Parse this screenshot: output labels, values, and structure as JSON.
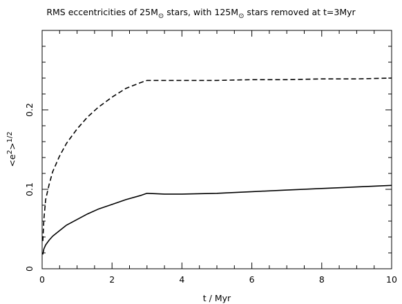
{
  "chart_data": {
    "type": "line",
    "title": {
      "part1": "RMS eccentricities of 25M",
      "sub1": "⊙",
      "part2": " stars, with 125M",
      "sub2": "⊙",
      "part3": " stars removed at t=3Myr"
    },
    "xlabel": "t  /  Myr",
    "ylabel": {
      "open": "<e",
      "sup1": "2",
      "close": ">",
      "sup2": "1/2"
    },
    "xlim": [
      0,
      10
    ],
    "ylim": [
      0,
      0.3
    ],
    "xticks_major": [
      0,
      2,
      4,
      6,
      8,
      10
    ],
    "xtick_labels": [
      "0",
      "2",
      "4",
      "6",
      "8",
      "10"
    ],
    "yticks_major": [
      0,
      0.1,
      0.2
    ],
    "ytick_labels": [
      "0",
      "0.1",
      "0.2"
    ],
    "grid": false,
    "legend": "none",
    "series": [
      {
        "style": "dashed",
        "x": [
          0.02,
          0.05,
          0.1,
          0.2,
          0.3,
          0.5,
          0.7,
          1.0,
          1.3,
          1.6,
          2.0,
          2.4,
          2.8,
          3.0,
          4.0,
          5.0,
          6.0,
          7.0,
          8.0,
          9.0,
          10.0
        ],
        "y": [
          0.035,
          0.062,
          0.087,
          0.106,
          0.122,
          0.142,
          0.158,
          0.176,
          0.191,
          0.203,
          0.216,
          0.227,
          0.234,
          0.237,
          0.237,
          0.237,
          0.238,
          0.238,
          0.239,
          0.239,
          0.24
        ]
      },
      {
        "style": "solid",
        "x": [
          0.02,
          0.05,
          0.1,
          0.2,
          0.3,
          0.5,
          0.7,
          1.0,
          1.3,
          1.6,
          2.0,
          2.4,
          2.8,
          3.0,
          3.5,
          4.0,
          5.0,
          6.0,
          7.0,
          8.0,
          9.0,
          10.0
        ],
        "y": [
          0.018,
          0.025,
          0.03,
          0.036,
          0.041,
          0.048,
          0.055,
          0.062,
          0.069,
          0.075,
          0.081,
          0.087,
          0.092,
          0.095,
          0.094,
          0.094,
          0.095,
          0.097,
          0.099,
          0.101,
          0.103,
          0.105
        ]
      }
    ]
  }
}
